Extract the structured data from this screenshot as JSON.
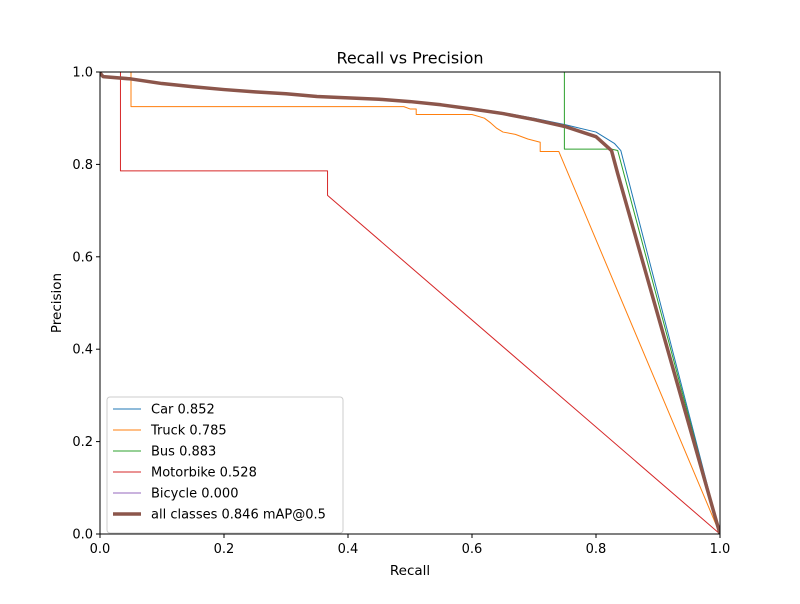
{
  "chart_data": {
    "type": "line",
    "title": "Recall vs Precision",
    "xlabel": "Recall",
    "ylabel": "Precision",
    "xlim": [
      0,
      1
    ],
    "ylim": [
      0,
      1
    ],
    "xticks": [
      "0.0",
      "0.2",
      "0.4",
      "0.6",
      "0.8",
      "1.0"
    ],
    "yticks": [
      "0.0",
      "0.2",
      "0.4",
      "0.6",
      "0.8",
      "1.0"
    ],
    "grid": false,
    "legend_position": "lower-left",
    "series": [
      {
        "name": "Car 0.852",
        "color": "#1f77b4",
        "width": 1,
        "points": [
          [
            0,
            1.0
          ],
          [
            0.005,
            0.99
          ],
          [
            0.05,
            0.985
          ],
          [
            0.1,
            0.975
          ],
          [
            0.15,
            0.97
          ],
          [
            0.2,
            0.962
          ],
          [
            0.25,
            0.958
          ],
          [
            0.3,
            0.954
          ],
          [
            0.35,
            0.948
          ],
          [
            0.4,
            0.945
          ],
          [
            0.45,
            0.942
          ],
          [
            0.5,
            0.937
          ],
          [
            0.55,
            0.93
          ],
          [
            0.6,
            0.922
          ],
          [
            0.65,
            0.912
          ],
          [
            0.7,
            0.9
          ],
          [
            0.75,
            0.886
          ],
          [
            0.8,
            0.87
          ],
          [
            0.83,
            0.845
          ],
          [
            0.84,
            0.83
          ],
          [
            1.0,
            0.0
          ]
        ]
      },
      {
        "name": "Truck 0.785",
        "color": "#ff7f0e",
        "width": 1,
        "points": [
          [
            0,
            1.0
          ],
          [
            0.05,
            1.0
          ],
          [
            0.05,
            0.925
          ],
          [
            0.49,
            0.925
          ],
          [
            0.5,
            0.92
          ],
          [
            0.51,
            0.92
          ],
          [
            0.51,
            0.908
          ],
          [
            0.6,
            0.908
          ],
          [
            0.62,
            0.9
          ],
          [
            0.63,
            0.89
          ],
          [
            0.64,
            0.878
          ],
          [
            0.65,
            0.87
          ],
          [
            0.67,
            0.865
          ],
          [
            0.69,
            0.855
          ],
          [
            0.71,
            0.848
          ],
          [
            0.71,
            0.828
          ],
          [
            0.74,
            0.828
          ],
          [
            1.0,
            0.0
          ]
        ]
      },
      {
        "name": "Bus 0.883",
        "color": "#2ca02c",
        "width": 1,
        "points": [
          [
            0,
            1.0
          ],
          [
            0.749,
            1.0
          ],
          [
            0.749,
            0.833
          ],
          [
            0.825,
            0.833
          ],
          [
            0.835,
            0.83
          ],
          [
            1.0,
            0.0
          ]
        ]
      },
      {
        "name": "Motorbike 0.528",
        "color": "#d62728",
        "width": 1,
        "points": [
          [
            0,
            1.0
          ],
          [
            0.033,
            1.0
          ],
          [
            0.033,
            0.786
          ],
          [
            0.367,
            0.786
          ],
          [
            0.367,
            0.733
          ],
          [
            1.0,
            0.0
          ]
        ]
      },
      {
        "name": "Bicycle 0.000",
        "color": "#9467bd",
        "width": 1,
        "points": []
      },
      {
        "name": "all classes 0.846 mAP@0.5",
        "color": "#8c564b",
        "width": 3.5,
        "points": [
          [
            0,
            0.998
          ],
          [
            0.005,
            0.99
          ],
          [
            0.05,
            0.985
          ],
          [
            0.1,
            0.975
          ],
          [
            0.15,
            0.968
          ],
          [
            0.2,
            0.962
          ],
          [
            0.25,
            0.957
          ],
          [
            0.3,
            0.953
          ],
          [
            0.35,
            0.947
          ],
          [
            0.4,
            0.944
          ],
          [
            0.45,
            0.941
          ],
          [
            0.5,
            0.936
          ],
          [
            0.55,
            0.929
          ],
          [
            0.6,
            0.92
          ],
          [
            0.65,
            0.91
          ],
          [
            0.7,
            0.897
          ],
          [
            0.75,
            0.882
          ],
          [
            0.8,
            0.86
          ],
          [
            0.825,
            0.83
          ],
          [
            0.835,
            0.78
          ],
          [
            1.0,
            0.0
          ]
        ]
      }
    ]
  }
}
